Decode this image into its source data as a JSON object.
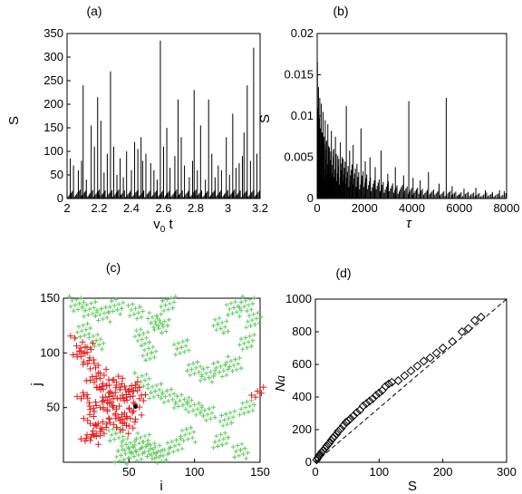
{
  "chart_data": [
    {
      "id": "a",
      "type": "bar",
      "panel_label": "(a)",
      "xlabel": "v",
      "xlabel_sub": "0",
      "xlabel_suffix": " t",
      "ylabel": "S",
      "xlim": [
        2,
        3.2
      ],
      "ylim": [
        0,
        350
      ],
      "xticks": [
        "2",
        "2.2",
        "2.4",
        "2.6",
        "2.8",
        "3",
        "3.2"
      ],
      "yticks": [
        "0",
        "50",
        "100",
        "150",
        "200",
        "250",
        "300",
        "350"
      ],
      "x": [
        2.02,
        2.04,
        2.07,
        2.09,
        2.1,
        2.12,
        2.15,
        2.17,
        2.19,
        2.21,
        2.23,
        2.25,
        2.27,
        2.29,
        2.31,
        2.33,
        2.35,
        2.37,
        2.4,
        2.42,
        2.44,
        2.46,
        2.47,
        2.49,
        2.52,
        2.54,
        2.56,
        2.58,
        2.6,
        2.62,
        2.64,
        2.67,
        2.69,
        2.71,
        2.73,
        2.76,
        2.78,
        2.79,
        2.81,
        2.83,
        2.86,
        2.88,
        2.9,
        2.92,
        2.94,
        2.96,
        2.99,
        3.01,
        3.03,
        3.05,
        3.07,
        3.09,
        3.1,
        3.12,
        3.14,
        3.16,
        3.18
      ],
      "values": [
        85,
        70,
        60,
        80,
        240,
        40,
        155,
        110,
        215,
        165,
        55,
        95,
        270,
        110,
        50,
        85,
        45,
        100,
        60,
        120,
        105,
        130,
        80,
        95,
        75,
        60,
        40,
        335,
        110,
        150,
        65,
        90,
        210,
        130,
        70,
        45,
        80,
        230,
        60,
        155,
        40,
        210,
        95,
        45,
        70,
        60,
        130,
        50,
        180,
        65,
        75,
        90,
        140,
        240,
        80,
        320,
        95
      ]
    },
    {
      "id": "b",
      "type": "bar",
      "panel_label": "(b)",
      "xlabel": "τ",
      "ylabel": "S",
      "xlim": [
        0,
        8000
      ],
      "ylim": [
        0,
        0.02
      ],
      "xticks": [
        "0",
        "2000",
        "4000",
        "6000",
        "8000"
      ],
      "yticks": [
        "0",
        "0.005",
        "0.01",
        "0.015",
        "0.02"
      ],
      "x": [
        10,
        30,
        55,
        80,
        110,
        140,
        175,
        210,
        250,
        290,
        340,
        390,
        450,
        520,
        600,
        680,
        770,
        870,
        980,
        1100,
        1230,
        1370,
        1520,
        1680,
        1850,
        2030,
        2230,
        2450,
        2700,
        2980,
        3300,
        3650,
        3870,
        4050,
        4350,
        4700,
        5150,
        5450,
        5700,
        6200,
        6700,
        7100,
        7400,
        7700,
        7900
      ],
      "values": [
        0.0165,
        0.011,
        0.0135,
        0.0098,
        0.0122,
        0.0085,
        0.0115,
        0.008,
        0.0105,
        0.0075,
        0.0095,
        0.0068,
        0.009,
        0.0062,
        0.0082,
        0.0058,
        0.0075,
        0.0052,
        0.0068,
        0.0048,
        0.0112,
        0.0058,
        0.0065,
        0.0042,
        0.0085,
        0.0045,
        0.005,
        0.0038,
        0.0058,
        0.003,
        0.0038,
        0.0028,
        0.0118,
        0.0025,
        0.0022,
        0.0032,
        0.0018,
        0.0122,
        0.0015,
        0.0012,
        0.0013,
        0.001,
        0.0008,
        0.001,
        0.0009
      ]
    },
    {
      "id": "c",
      "type": "scatter",
      "panel_label": "(c)",
      "xlabel": "i",
      "ylabel": "j",
      "xlim": [
        0,
        150
      ],
      "ylim": [
        0,
        150
      ],
      "xticks": [
        "50",
        "100",
        "150"
      ],
      "yticks": [
        "50",
        "100",
        "150"
      ],
      "series_colors": [
        "#66cc66",
        "#e41a1c",
        "#000000"
      ],
      "green_cluster": {
        "x": [
          10,
          20,
          30,
          40,
          55,
          70,
          80,
          15,
          25,
          60,
          75,
          65,
          90,
          100,
          110,
          120,
          130,
          140,
          145,
          130,
          120,
          140,
          60,
          70,
          80,
          90,
          100,
          110,
          125,
          140,
          40,
          50,
          60,
          70,
          85,
          95,
          45,
          55,
          65,
          75,
          120,
          135
        ],
        "y": [
          145,
          140,
          135,
          142,
          138,
          130,
          145,
          120,
          110,
          115,
          125,
          100,
          105,
          85,
          80,
          85,
          90,
          110,
          130,
          140,
          125,
          145,
          75,
          65,
          60,
          55,
          50,
          45,
          40,
          50,
          25,
          15,
          20,
          10,
          15,
          25,
          5,
          8,
          12,
          6,
          20,
          10
        ]
      },
      "red_cluster": {
        "x": [
          10,
          12,
          15,
          18,
          20,
          22,
          25,
          28,
          30,
          32,
          35,
          38,
          40,
          42,
          45,
          48,
          50,
          52,
          55,
          58,
          20,
          25,
          30,
          35,
          40,
          45,
          50,
          15,
          20,
          25,
          30,
          18,
          22,
          28,
          35,
          42,
          48,
          55,
          148
        ],
        "y": [
          110,
          100,
          95,
          105,
          90,
          80,
          75,
          85,
          70,
          65,
          60,
          55,
          70,
          75,
          65,
          60,
          55,
          70,
          65,
          60,
          40,
          30,
          35,
          45,
          40,
          30,
          35,
          60,
          55,
          50,
          65,
          25,
          20,
          30,
          50,
          45,
          40,
          45,
          65
        ]
      },
      "marker": {
        "x": [
          55
        ],
        "y": [
          51
        ]
      }
    },
    {
      "id": "d",
      "type": "scatter",
      "panel_label": "(d)",
      "xlabel": "S",
      "ylabel": "Na",
      "xlim": [
        0,
        300
      ],
      "ylim": [
        0,
        1000
      ],
      "xticks": [
        "0",
        "100",
        "200",
        "300"
      ],
      "yticks": [
        "0",
        "200",
        "400",
        "600",
        "800",
        "1000"
      ],
      "x": [
        2,
        4,
        6,
        8,
        10,
        12,
        15,
        18,
        20,
        22,
        25,
        28,
        30,
        33,
        36,
        40,
        44,
        48,
        52,
        55,
        60,
        65,
        70,
        75,
        80,
        85,
        90,
        95,
        100,
        105,
        110,
        115,
        120,
        130,
        140,
        150,
        160,
        170,
        180,
        190,
        200,
        215,
        230,
        240,
        250,
        260
      ],
      "values": [
        15,
        28,
        40,
        50,
        62,
        70,
        85,
        100,
        110,
        118,
        135,
        150,
        160,
        172,
        190,
        205,
        225,
        245,
        255,
        268,
        285,
        305,
        320,
        345,
        360,
        375,
        390,
        410,
        425,
        440,
        465,
        480,
        490,
        500,
        530,
        560,
        590,
        620,
        640,
        670,
        700,
        740,
        800,
        820,
        870,
        890
      ],
      "fit_line": {
        "x": [
          0,
          300
        ],
        "y": [
          0,
          1000
        ]
      }
    }
  ]
}
